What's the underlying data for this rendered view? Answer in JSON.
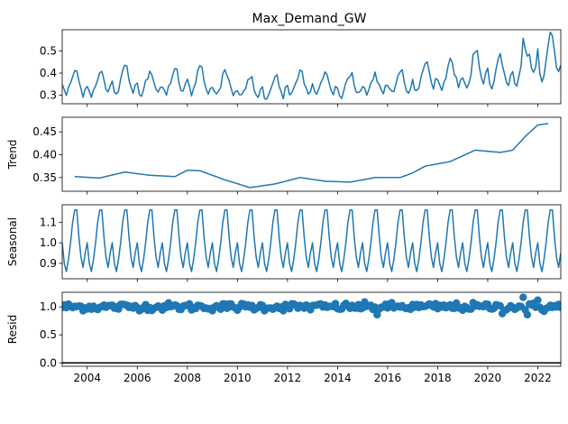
{
  "chart_data": {
    "type": "line",
    "title": "Max_Demand_GW",
    "x_range": [
      2003.0,
      2022.92
    ],
    "x_ticks": [
      {
        "value": 2004,
        "label": "2004"
      },
      {
        "value": 2006,
        "label": "2006"
      },
      {
        "value": 2008,
        "label": "2008"
      },
      {
        "value": 2010,
        "label": "2010"
      },
      {
        "value": 2012,
        "label": "2012"
      },
      {
        "value": 2014,
        "label": "2014"
      },
      {
        "value": 2016,
        "label": "2016"
      },
      {
        "value": 2018,
        "label": "2018"
      },
      {
        "value": 2020,
        "label": "2020"
      },
      {
        "value": 2022,
        "label": "2022"
      }
    ],
    "line_color": "#1f77b4",
    "panels": [
      {
        "key": "observed",
        "ylabel": "",
        "type": "line",
        "ylim": [
          0.262,
          0.595
        ],
        "yticks": [
          {
            "value": 0.3,
            "label": "0.3"
          },
          {
            "value": 0.4,
            "label": "0.4"
          },
          {
            "value": 0.5,
            "label": "0.5"
          }
        ],
        "seasonal_pattern": [
          1.0,
          0.9,
          0.86,
          0.92,
          1.0,
          1.1,
          1.16,
          1.16,
          1.03,
          0.93,
          0.88,
          0.95
        ],
        "trend_knots": [
          [
            2003.0,
            0.352
          ],
          [
            2003.5,
            0.352
          ],
          [
            2004.5,
            0.349
          ],
          [
            2005.5,
            0.362
          ],
          [
            2006.5,
            0.355
          ],
          [
            2007.5,
            0.352
          ],
          [
            2008.0,
            0.366
          ],
          [
            2008.5,
            0.365
          ],
          [
            2009.5,
            0.345
          ],
          [
            2010.5,
            0.328
          ],
          [
            2011.5,
            0.336
          ],
          [
            2012.5,
            0.35
          ],
          [
            2013.5,
            0.342
          ],
          [
            2014.5,
            0.34
          ],
          [
            2015.5,
            0.35
          ],
          [
            2016.5,
            0.35
          ],
          [
            2017.0,
            0.36
          ],
          [
            2017.5,
            0.375
          ],
          [
            2018.5,
            0.385
          ],
          [
            2019.5,
            0.41
          ],
          [
            2020.5,
            0.405
          ],
          [
            2021.0,
            0.41
          ],
          [
            2021.5,
            0.44
          ],
          [
            2022.0,
            0.465
          ],
          [
            2022.92,
            0.472
          ]
        ],
        "resid_noise_factor": 1.0
      },
      {
        "key": "trend",
        "ylabel": "Trend",
        "type": "line",
        "ylim": [
          0.32,
          0.482
        ],
        "yticks": [
          {
            "value": 0.35,
            "label": "0.35"
          },
          {
            "value": 0.4,
            "label": "0.40"
          },
          {
            "value": 0.45,
            "label": "0.45"
          }
        ],
        "data_x_range": [
          2003.5,
          2022.42
        ]
      },
      {
        "key": "seasonal",
        "ylabel": "Seasonal",
        "type": "line",
        "ylim": [
          0.825,
          1.185
        ],
        "yticks": [
          {
            "value": 0.9,
            "label": "0.9"
          },
          {
            "value": 1.0,
            "label": "1.0"
          },
          {
            "value": 1.1,
            "label": "1.1"
          }
        ]
      },
      {
        "key": "resid",
        "ylabel": "Resid",
        "type": "scatter",
        "ylim": [
          -0.06,
          1.26
        ],
        "yticks": [
          {
            "value": 0.0,
            "label": "0.0"
          },
          {
            "value": 0.5,
            "label": "0.5"
          },
          {
            "value": 1.0,
            "label": "1.0"
          }
        ],
        "baseline": 0.0,
        "outliers": [
          [
            2015.58,
            0.86
          ],
          [
            2020.58,
            0.88
          ],
          [
            2021.42,
            1.17
          ],
          [
            2021.58,
            0.86
          ],
          [
            2022.0,
            1.12
          ],
          [
            2022.25,
            0.92
          ]
        ]
      }
    ]
  }
}
